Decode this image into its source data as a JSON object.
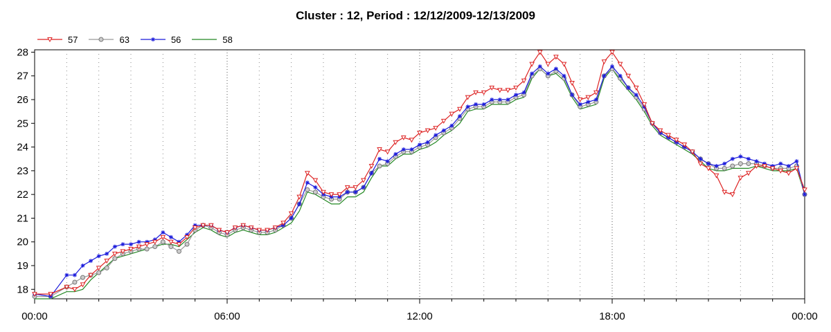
{
  "chart_data": {
    "type": "line",
    "title": "Cluster : 12, Period : 12/12/2009-12/13/2009",
    "xlabel": "",
    "ylabel": "",
    "xlim": [
      "00:00",
      "00:00"
    ],
    "ylim": [
      17.6,
      28.1
    ],
    "x_tick_labels": [
      "00:00",
      "06:00",
      "12:00",
      "18:00",
      "00:00"
    ],
    "y_tick_labels": [
      "18",
      "19",
      "20",
      "21",
      "22",
      "23",
      "24",
      "25",
      "26",
      "27",
      "28"
    ],
    "y_ticks": [
      18,
      19,
      20,
      21,
      22,
      23,
      24,
      25,
      26,
      27,
      28
    ],
    "grid": true,
    "legend_position": "top-left",
    "x_hours": [
      0,
      0.5,
      1,
      1.25,
      1.5,
      1.75,
      2,
      2.25,
      2.5,
      2.75,
      3,
      3.25,
      3.5,
      3.75,
      4,
      4.25,
      4.5,
      4.75,
      5,
      5.25,
      5.5,
      5.75,
      6,
      6.25,
      6.5,
      6.75,
      7,
      7.25,
      7.5,
      7.75,
      8,
      8.25,
      8.5,
      8.75,
      9,
      9.25,
      9.5,
      9.75,
      10,
      10.25,
      10.5,
      10.75,
      11,
      11.25,
      11.5,
      11.75,
      12,
      12.25,
      12.5,
      12.75,
      13,
      13.25,
      13.5,
      13.75,
      14,
      14.25,
      14.5,
      14.75,
      15,
      15.25,
      15.5,
      15.75,
      16,
      16.25,
      16.5,
      16.75,
      17,
      17.25,
      17.5,
      17.75,
      18,
      18.25,
      18.5,
      18.75,
      19,
      19.25,
      19.5,
      19.75,
      20,
      20.25,
      20.5,
      20.75,
      21,
      21.25,
      21.5,
      21.75,
      22,
      22.25,
      22.5,
      22.75,
      23,
      23.25,
      23.5,
      23.75,
      24
    ],
    "series": [
      {
        "name": "57",
        "color": "#dd2222",
        "marker": "triangle-down",
        "values": [
          17.8,
          17.8,
          18.1,
          18.0,
          18.2,
          18.6,
          18.9,
          19.2,
          19.5,
          19.6,
          19.7,
          19.8,
          19.9,
          20.0,
          20.2,
          20.0,
          19.9,
          20.2,
          20.6,
          20.7,
          20.7,
          20.5,
          20.4,
          20.6,
          20.7,
          20.6,
          20.5,
          20.5,
          20.6,
          20.8,
          21.2,
          21.9,
          22.9,
          22.6,
          22.1,
          22.0,
          22.0,
          22.3,
          22.3,
          22.6,
          23.2,
          23.9,
          23.8,
          24.2,
          24.4,
          24.3,
          24.6,
          24.7,
          24.8,
          25.1,
          25.4,
          25.6,
          26.1,
          26.3,
          26.3,
          26.5,
          26.4,
          26.4,
          26.5,
          26.8,
          27.5,
          28.0,
          27.5,
          27.8,
          27.5,
          26.7,
          26.0,
          26.1,
          26.3,
          27.6,
          28.0,
          27.5,
          27.0,
          26.5,
          25.8,
          25.0,
          24.7,
          24.5,
          24.3,
          24.1,
          23.8,
          23.3,
          23.1,
          22.8,
          22.1,
          22.0,
          22.7,
          22.9,
          23.2,
          23.2,
          23.1,
          23.0,
          22.9,
          23.1,
          22.2
        ]
      },
      {
        "name": "63",
        "color": "#999999",
        "marker": "circle",
        "values": [
          17.7,
          17.7,
          18.1,
          18.3,
          18.5,
          18.6,
          18.7,
          18.9,
          19.3,
          19.5,
          19.6,
          19.7,
          19.7,
          19.8,
          20.0,
          19.8,
          19.6,
          19.9,
          20.5,
          20.7,
          20.6,
          20.4,
          20.3,
          20.5,
          20.6,
          20.5,
          20.4,
          20.4,
          20.5,
          20.7,
          21.0,
          21.6,
          22.2,
          22.1,
          21.9,
          21.8,
          21.8,
          22.1,
          22.1,
          22.3,
          22.9,
          23.2,
          23.3,
          23.6,
          23.8,
          23.8,
          24.0,
          24.1,
          24.4,
          24.6,
          24.8,
          25.2,
          25.6,
          25.7,
          25.7,
          25.9,
          25.9,
          25.9,
          26.1,
          26.2,
          27.0,
          27.3,
          27.0,
          27.2,
          26.9,
          26.2,
          25.7,
          25.8,
          25.9,
          27.0,
          27.3,
          26.9,
          26.5,
          26.1,
          25.6,
          25.0,
          24.6,
          24.4,
          24.2,
          24.0,
          23.8,
          23.5,
          23.3,
          23.1,
          23.1,
          23.2,
          23.3,
          23.3,
          23.3,
          23.2,
          23.1,
          23.1,
          23.1,
          23.2,
          22.0
        ]
      },
      {
        "name": "56",
        "color": "#1a1adb",
        "marker": "star",
        "values": [
          17.8,
          17.7,
          18.6,
          18.6,
          19.0,
          19.2,
          19.4,
          19.5,
          19.8,
          19.9,
          19.9,
          20.0,
          20.0,
          20.1,
          20.4,
          20.2,
          20.0,
          20.3,
          20.7,
          20.7,
          20.7,
          20.5,
          20.4,
          20.6,
          20.7,
          20.6,
          20.5,
          20.5,
          20.6,
          20.7,
          21.0,
          21.6,
          22.5,
          22.3,
          22.0,
          21.9,
          21.9,
          22.1,
          22.1,
          22.3,
          22.9,
          23.5,
          23.4,
          23.7,
          23.9,
          23.9,
          24.1,
          24.2,
          24.5,
          24.7,
          24.9,
          25.3,
          25.7,
          25.8,
          25.8,
          26.0,
          26.0,
          26.0,
          26.2,
          26.3,
          27.1,
          27.4,
          27.1,
          27.3,
          27.0,
          26.2,
          25.8,
          25.9,
          26.0,
          27.0,
          27.4,
          27.0,
          26.5,
          26.2,
          25.7,
          25.0,
          24.6,
          24.4,
          24.2,
          24.0,
          23.8,
          23.5,
          23.3,
          23.2,
          23.3,
          23.5,
          23.6,
          23.5,
          23.4,
          23.3,
          23.2,
          23.3,
          23.2,
          23.4,
          22.0
        ]
      },
      {
        "name": "58",
        "color": "#228822",
        "marker": "none",
        "values": [
          17.6,
          17.6,
          17.9,
          17.9,
          18.0,
          18.4,
          18.7,
          19.0,
          19.3,
          19.4,
          19.5,
          19.6,
          19.7,
          19.8,
          19.9,
          19.9,
          19.8,
          20.1,
          20.4,
          20.6,
          20.5,
          20.3,
          20.2,
          20.4,
          20.5,
          20.4,
          20.3,
          20.3,
          20.4,
          20.6,
          20.8,
          21.3,
          22.1,
          22.0,
          21.8,
          21.6,
          21.6,
          21.9,
          21.9,
          22.1,
          22.7,
          23.2,
          23.2,
          23.5,
          23.7,
          23.7,
          23.9,
          24.0,
          24.2,
          24.5,
          24.7,
          25.0,
          25.5,
          25.6,
          25.6,
          25.8,
          25.8,
          25.8,
          26.0,
          26.1,
          26.9,
          27.3,
          27.0,
          27.1,
          26.8,
          26.1,
          25.6,
          25.7,
          25.8,
          26.9,
          27.3,
          26.8,
          26.4,
          26.0,
          25.5,
          24.9,
          24.5,
          24.3,
          24.1,
          23.9,
          23.7,
          23.4,
          23.1,
          23.0,
          23.0,
          23.1,
          23.1,
          23.1,
          23.2,
          23.1,
          23.0,
          23.0,
          23.0,
          23.1,
          22.0
        ]
      }
    ]
  }
}
